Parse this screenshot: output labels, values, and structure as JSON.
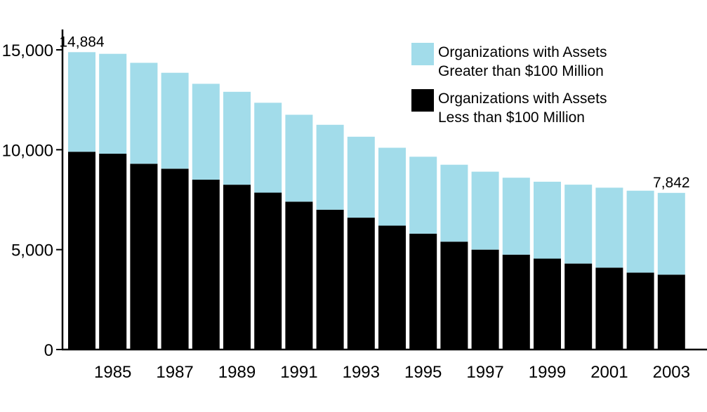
{
  "chart_data": {
    "type": "bar",
    "stacked": true,
    "categories": [
      "1984",
      "1985",
      "1986",
      "1987",
      "1988",
      "1989",
      "1990",
      "1991",
      "1992",
      "1993",
      "1994",
      "1995",
      "1996",
      "1997",
      "1998",
      "1999",
      "2000",
      "2001",
      "2002",
      "2003"
    ],
    "x_tick_labels": [
      "1985",
      "1987",
      "1989",
      "1991",
      "1993",
      "1995",
      "1997",
      "1999",
      "2001",
      "2003"
    ],
    "series": [
      {
        "name": "Organizations with Assets Less than $100 Million",
        "color": "#000000",
        "values": [
          9900,
          9800,
          9300,
          9050,
          8500,
          8250,
          7850,
          7400,
          7000,
          6600,
          6200,
          5800,
          5400,
          5000,
          4750,
          4550,
          4300,
          4100,
          3850,
          3750
        ]
      },
      {
        "name": "Organizations with Assets Greater than $100 Million",
        "color": "#a2dcea",
        "values": [
          4984,
          5000,
          5050,
          4800,
          4800,
          4650,
          4500,
          4350,
          4250,
          4050,
          3900,
          3850,
          3850,
          3900,
          3850,
          3850,
          3950,
          4000,
          4100,
          4092
        ]
      }
    ],
    "data_labels": [
      {
        "category": "1984",
        "text": "14,884"
      },
      {
        "category": "2003",
        "text": "7,842"
      }
    ],
    "y_ticks": [
      0,
      5000,
      10000,
      15000
    ],
    "y_tick_labels": [
      "0",
      "5,000",
      "10,000",
      "15,000"
    ],
    "ylim": [
      0,
      16000
    ],
    "title": "",
    "xlabel": "",
    "ylabel": "",
    "grid": false,
    "legend": {
      "position": "top-right",
      "items": [
        {
          "color": "#a2dcea",
          "lines": [
            "Organizations with Assets",
            "Greater than $100 Million"
          ]
        },
        {
          "color": "#000000",
          "lines": [
            "Organizations with Assets",
            "Less than $100 Million"
          ]
        }
      ]
    }
  }
}
